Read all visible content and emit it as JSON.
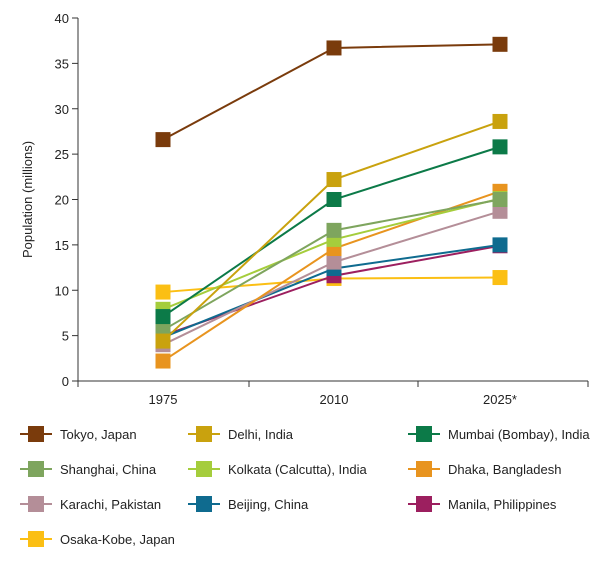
{
  "chart_data": {
    "type": "line",
    "xlabel": "",
    "ylabel": "Population (millions)",
    "categories": [
      "1975",
      "2010",
      "2025*"
    ],
    "ylim": [
      0,
      40
    ],
    "yticks": [
      0,
      5,
      10,
      15,
      20,
      25,
      30,
      35,
      40
    ],
    "grid": false,
    "legend_position": "bottom",
    "series": [
      {
        "name": "Tokyo, Japan",
        "color": "#7a3b0c",
        "values": [
          26.6,
          36.7,
          37.1
        ]
      },
      {
        "name": "Delhi, India",
        "color": "#c9a20e",
        "values": [
          4.4,
          22.2,
          28.6
        ]
      },
      {
        "name": "Mumbai (Bombay), India",
        "color": "#0c7a48",
        "values": [
          7.1,
          20.0,
          25.8
        ]
      },
      {
        "name": "Shanghai, China",
        "color": "#7ea55e",
        "values": [
          5.6,
          16.6,
          20.0
        ]
      },
      {
        "name": "Kolkata (Calcutta), India",
        "color": "#a5cd3c",
        "values": [
          7.9,
          15.6,
          20.1
        ]
      },
      {
        "name": "Dhaka, Bangladesh",
        "color": "#e8941f",
        "values": [
          2.2,
          14.6,
          20.9
        ]
      },
      {
        "name": "Karachi, Pakistan",
        "color": "#b48e98",
        "values": [
          4.0,
          13.1,
          18.7
        ]
      },
      {
        "name": "Beijing, China",
        "color": "#0f6b8f",
        "values": [
          4.8,
          12.4,
          15.0
        ]
      },
      {
        "name": "Manila, Philippines",
        "color": "#9c1f5f",
        "values": [
          5.0,
          11.6,
          14.9
        ]
      },
      {
        "name": "Osaka-Kobe, Japan",
        "color": "#fbbf14",
        "values": [
          9.8,
          11.3,
          11.4
        ]
      }
    ]
  }
}
